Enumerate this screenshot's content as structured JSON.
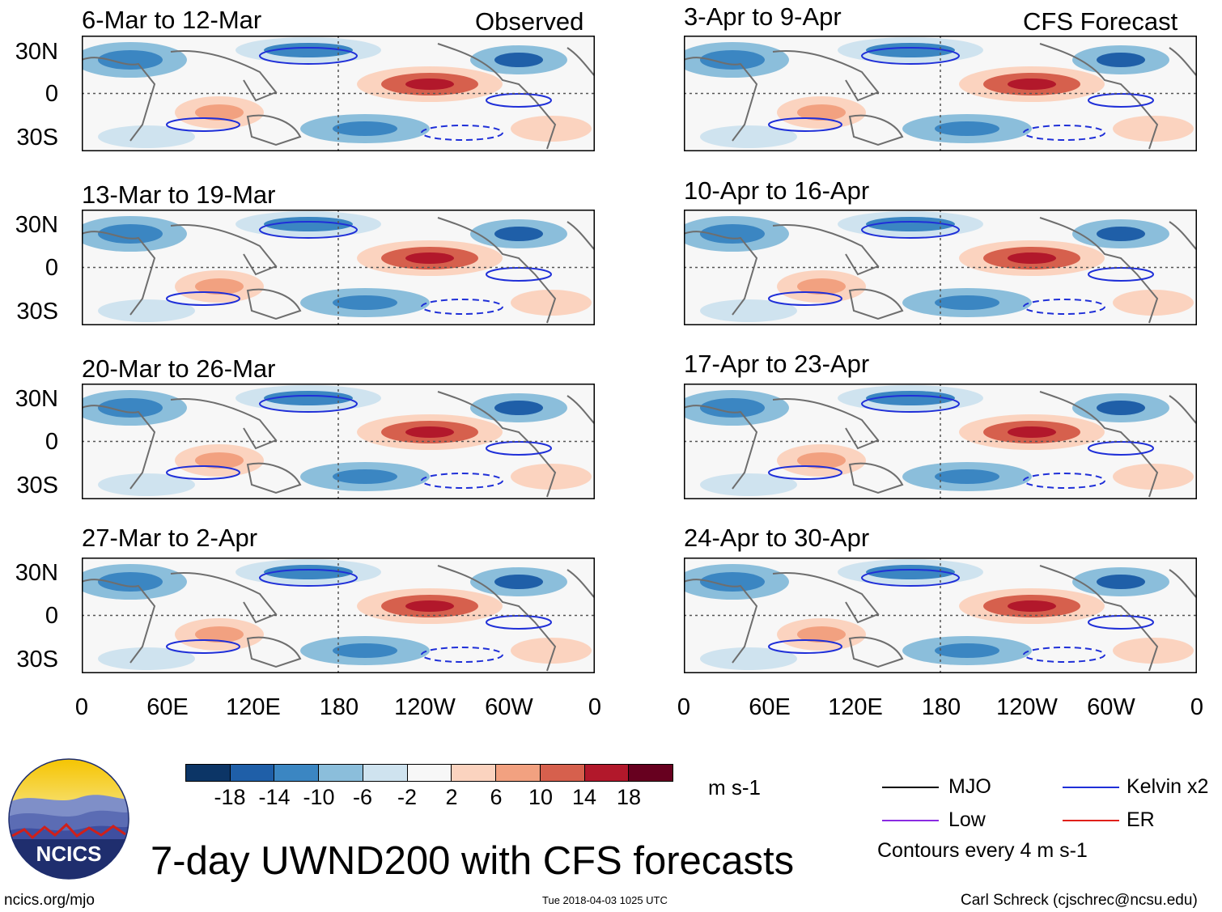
{
  "title": "7-day UWND200 with CFS forecasts",
  "logo": {
    "text": "NCICS"
  },
  "footer": {
    "left": "ncics.org/mjo",
    "center": "Tue 2018-04-03 1025 UTC",
    "right": "Carl Schreck (cjschrec@ncsu.edu)"
  },
  "columns": {
    "left_label": "Observed",
    "right_label": "CFS Forecast"
  },
  "panels": {
    "left": [
      "6-Mar to 12-Mar",
      "13-Mar to 19-Mar",
      "20-Mar to 26-Mar",
      "27-Mar to 2-Apr"
    ],
    "right": [
      "3-Apr to 9-Apr",
      "10-Apr to 16-Apr",
      "17-Apr to 23-Apr",
      "24-Apr to 30-Apr"
    ]
  },
  "lat_ticks": [
    "30N",
    "0",
    "30S"
  ],
  "lon_ticks": [
    "0",
    "60E",
    "120E",
    "180",
    "120W",
    "60W",
    "0"
  ],
  "colorbar": {
    "units": "m s-1",
    "labels": [
      "-18",
      "-14",
      "-10",
      "-6",
      "-2",
      "2",
      "6",
      "10",
      "14",
      "18"
    ],
    "colors": [
      "#0c3566",
      "#1f5fa8",
      "#3b86c2",
      "#8bbedb",
      "#cfe3ef",
      "#f7f7f7",
      "#fbd3bf",
      "#f2a180",
      "#d6604d",
      "#b2182b",
      "#67001f"
    ]
  },
  "legend": {
    "items": [
      {
        "label": "MJO",
        "color": "#000000"
      },
      {
        "label": "Kelvin x2",
        "color": "#1f2fd8"
      },
      {
        "label": "Low",
        "color": "#8a2be2"
      },
      {
        "label": "ER",
        "color": "#e0201a"
      }
    ],
    "note": "Contours every 4 m s-1"
  }
}
